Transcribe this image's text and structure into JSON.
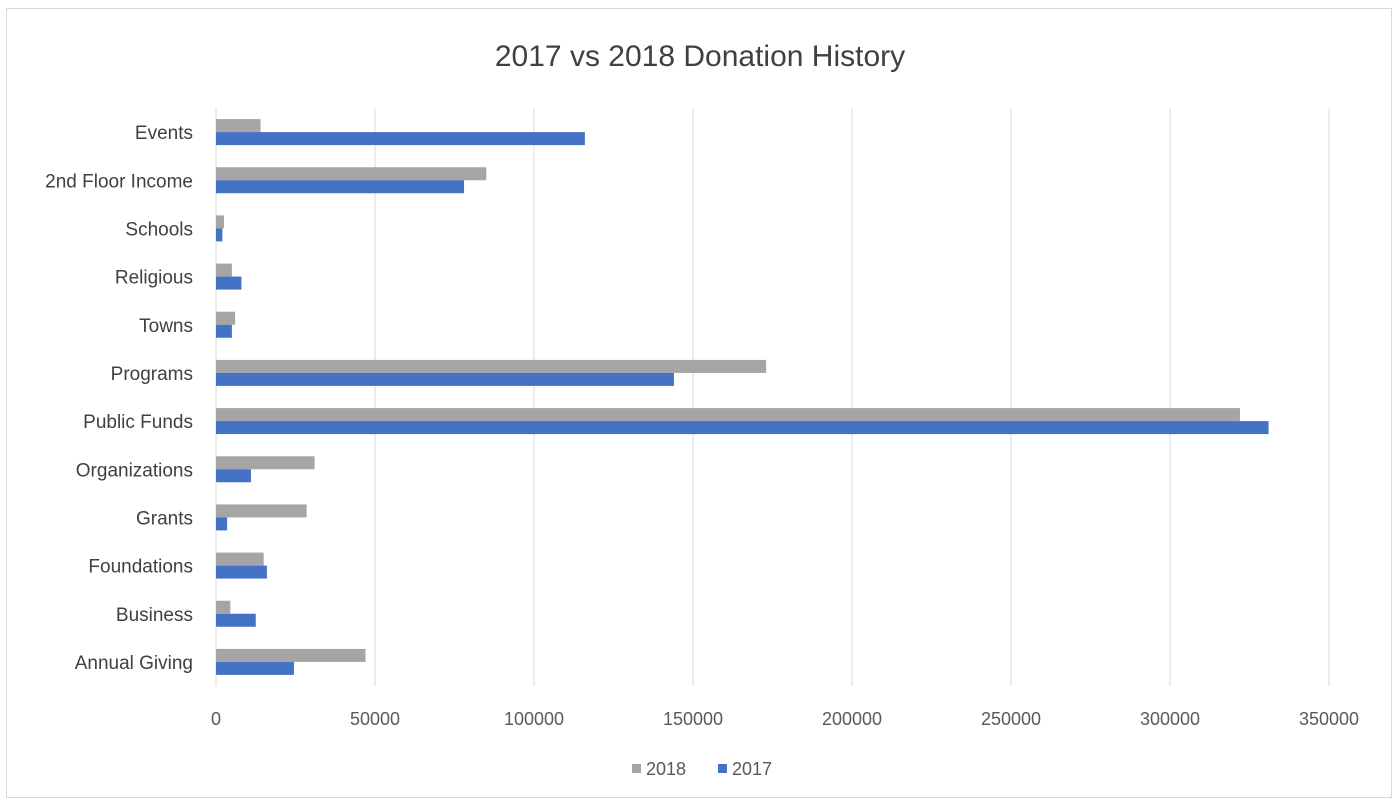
{
  "chart_data": {
    "type": "bar",
    "orientation": "horizontal",
    "title": "2017 vs 2018 Donation History",
    "categories": [
      "Annual Giving",
      "Business",
      "Foundations",
      "Grants",
      "Organizations",
      "Public Funds",
      "Programs",
      "Towns",
      "Religious",
      "Schools",
      "2nd Floor Income",
      "Events"
    ],
    "series": [
      {
        "name": "2018",
        "color": "#a5a5a5",
        "values": [
          47000,
          4500,
          15000,
          28500,
          31000,
          322000,
          173000,
          6000,
          5000,
          2500,
          85000,
          14000
        ]
      },
      {
        "name": "2017",
        "color": "#4472c4",
        "values": [
          24500,
          12500,
          16000,
          3500,
          11000,
          331000,
          144000,
          5000,
          8000,
          2000,
          78000,
          116000
        ]
      }
    ],
    "xlim": [
      0,
      350000
    ],
    "xticks": [
      "0",
      "50000",
      "100000",
      "150000",
      "200000",
      "250000",
      "300000",
      "350000"
    ],
    "grid": true,
    "legend_position": "bottom"
  }
}
